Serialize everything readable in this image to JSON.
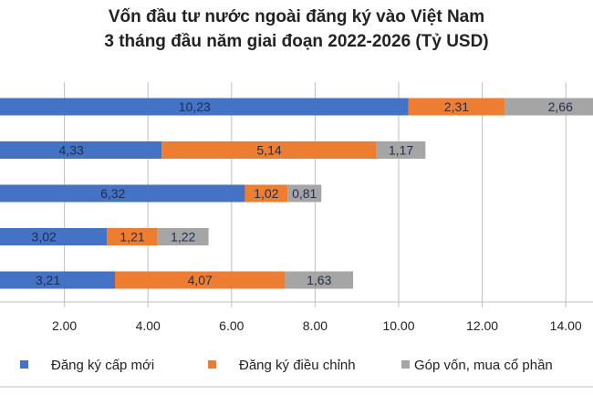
{
  "chart_data": {
    "type": "bar",
    "orientation": "horizontal",
    "stacked": true,
    "title": "Vốn đầu tư nước ngoài đăng ký vào Việt Nam",
    "subtitle": "3 tháng đầu năm giai đoạn 2022-2026 (Tỷ USD)",
    "xlim": [
      0,
      15
    ],
    "xticks": [
      "2.00",
      "4.00",
      "6.00",
      "8.00",
      "10.00",
      "12.00",
      "14.00"
    ],
    "xtick_values": [
      2,
      4,
      6,
      8,
      10,
      12,
      14
    ],
    "grid": true,
    "legend_position": "bottom",
    "series": [
      {
        "name": "Đăng ký cấp mới",
        "color": "#4472c4",
        "values": [
          10.23,
          4.33,
          6.32,
          3.02,
          3.21
        ],
        "labels": [
          "10,23",
          "4,33",
          "6,32",
          "3,02",
          "3,21"
        ]
      },
      {
        "name": "Đăng ký điều chỉnh",
        "color": "#ed7d31",
        "values": [
          2.31,
          5.14,
          1.02,
          1.21,
          4.07
        ],
        "labels": [
          "2,31",
          "5,14",
          "1,02",
          "1,21",
          "4,07"
        ]
      },
      {
        "name": "Góp vốn, mua cổ phần",
        "color": "#a5a5a5",
        "values": [
          2.66,
          1.17,
          0.81,
          1.22,
          1.63
        ],
        "labels": [
          "2,66",
          "1,17",
          "0,81",
          "1,22",
          "1,63"
        ]
      }
    ]
  }
}
